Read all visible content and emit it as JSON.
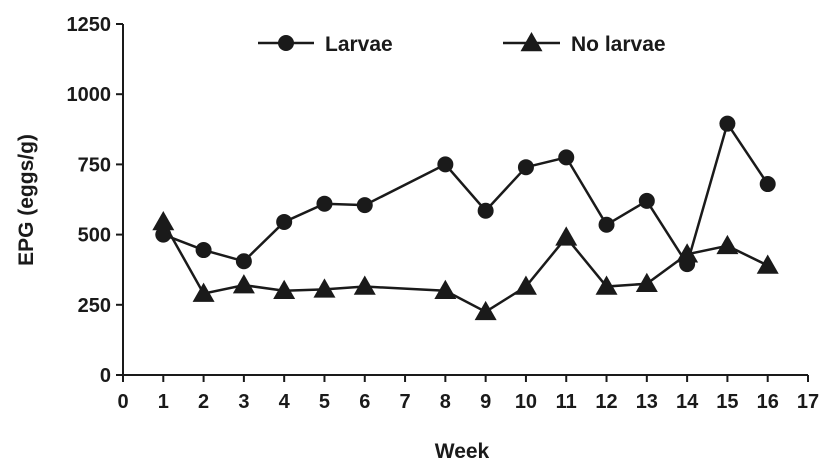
{
  "chart_data": {
    "type": "line",
    "xlabel": "Week",
    "ylabel": "EPG (eggs/g)",
    "xlim": [
      0,
      17
    ],
    "ylim": [
      0,
      1250
    ],
    "x_ticks": [
      "0",
      "1",
      "2",
      "3",
      "4",
      "5",
      "6",
      "7",
      "8",
      "9",
      "10",
      "11",
      "12",
      "13",
      "14",
      "15",
      "16",
      "17"
    ],
    "y_ticks": [
      "0",
      "250",
      "500",
      "750",
      "1000",
      "1250"
    ],
    "grid": false,
    "legend_position": "top",
    "series": [
      {
        "name": "Larvae",
        "marker": "circle",
        "x": [
          1,
          2,
          3,
          4,
          5,
          6,
          8,
          9,
          10,
          11,
          12,
          13,
          14,
          15,
          16
        ],
        "values": [
          500,
          445,
          405,
          545,
          610,
          605,
          750,
          585,
          740,
          775,
          535,
          620,
          395,
          895,
          680
        ]
      },
      {
        "name": "No larvae",
        "marker": "triangle",
        "x": [
          1,
          2,
          3,
          4,
          5,
          6,
          8,
          9,
          10,
          11,
          12,
          13,
          14,
          15,
          16
        ],
        "values": [
          545,
          290,
          320,
          300,
          305,
          315,
          300,
          225,
          315,
          490,
          315,
          325,
          430,
          460,
          390
        ]
      }
    ]
  }
}
